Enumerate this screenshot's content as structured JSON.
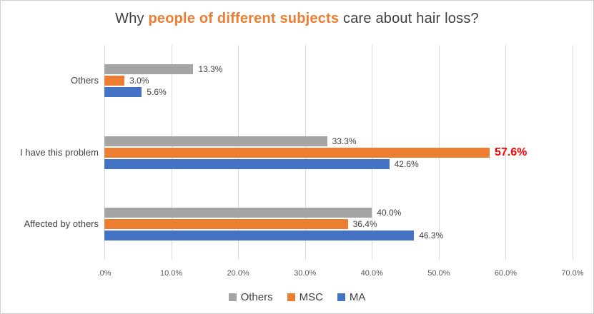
{
  "title": {
    "prefix": "Why ",
    "highlight": "people of different subjects",
    "suffix": " care about hair loss?"
  },
  "colors": {
    "series_others": "#A5A5A5",
    "series_msc": "#ED7D31",
    "series_ma": "#4472C4",
    "emphasis_label": "#FF0000",
    "gridline": "#D9D9D9",
    "title_text": "#404040",
    "title_highlight": "#ED7D31",
    "tick_text": "#595959"
  },
  "chart_data": {
    "type": "bar",
    "orientation": "horizontal",
    "title": "Why people of different subjects care about hair loss?",
    "categories": [
      "Others",
      "I have this problem",
      "Affected by others"
    ],
    "series": [
      {
        "name": "Others",
        "color": "#A5A5A5",
        "values": [
          13.3,
          33.3,
          40.0
        ],
        "labels": [
          "13.3%",
          "33.3%",
          "40.0%"
        ]
      },
      {
        "name": "MSC",
        "color": "#ED7D31",
        "values": [
          3.0,
          57.6,
          36.4
        ],
        "labels": [
          "3.0%",
          "57.6%",
          "36.4%"
        ]
      },
      {
        "name": "MA",
        "color": "#4472C4",
        "values": [
          5.6,
          42.6,
          46.3
        ],
        "labels": [
          "5.6%",
          "42.6%",
          "46.3%"
        ]
      }
    ],
    "x_ticks": {
      "labels": [
        ".0%",
        "10.0%",
        "20.0%",
        "30.0%",
        "40.0%",
        "50.0%",
        "60.0%",
        "70.0%"
      ],
      "values": [
        0,
        10,
        20,
        30,
        40,
        50,
        60,
        70
      ]
    },
    "xlim": [
      0,
      70
    ],
    "grid": "vertical",
    "legend": {
      "position": "bottom",
      "items": [
        "Others",
        "MSC",
        "MA"
      ]
    },
    "emphasized_label": {
      "series": "MSC",
      "category": "I have this problem",
      "color": "#FF0000",
      "bold": true
    }
  }
}
